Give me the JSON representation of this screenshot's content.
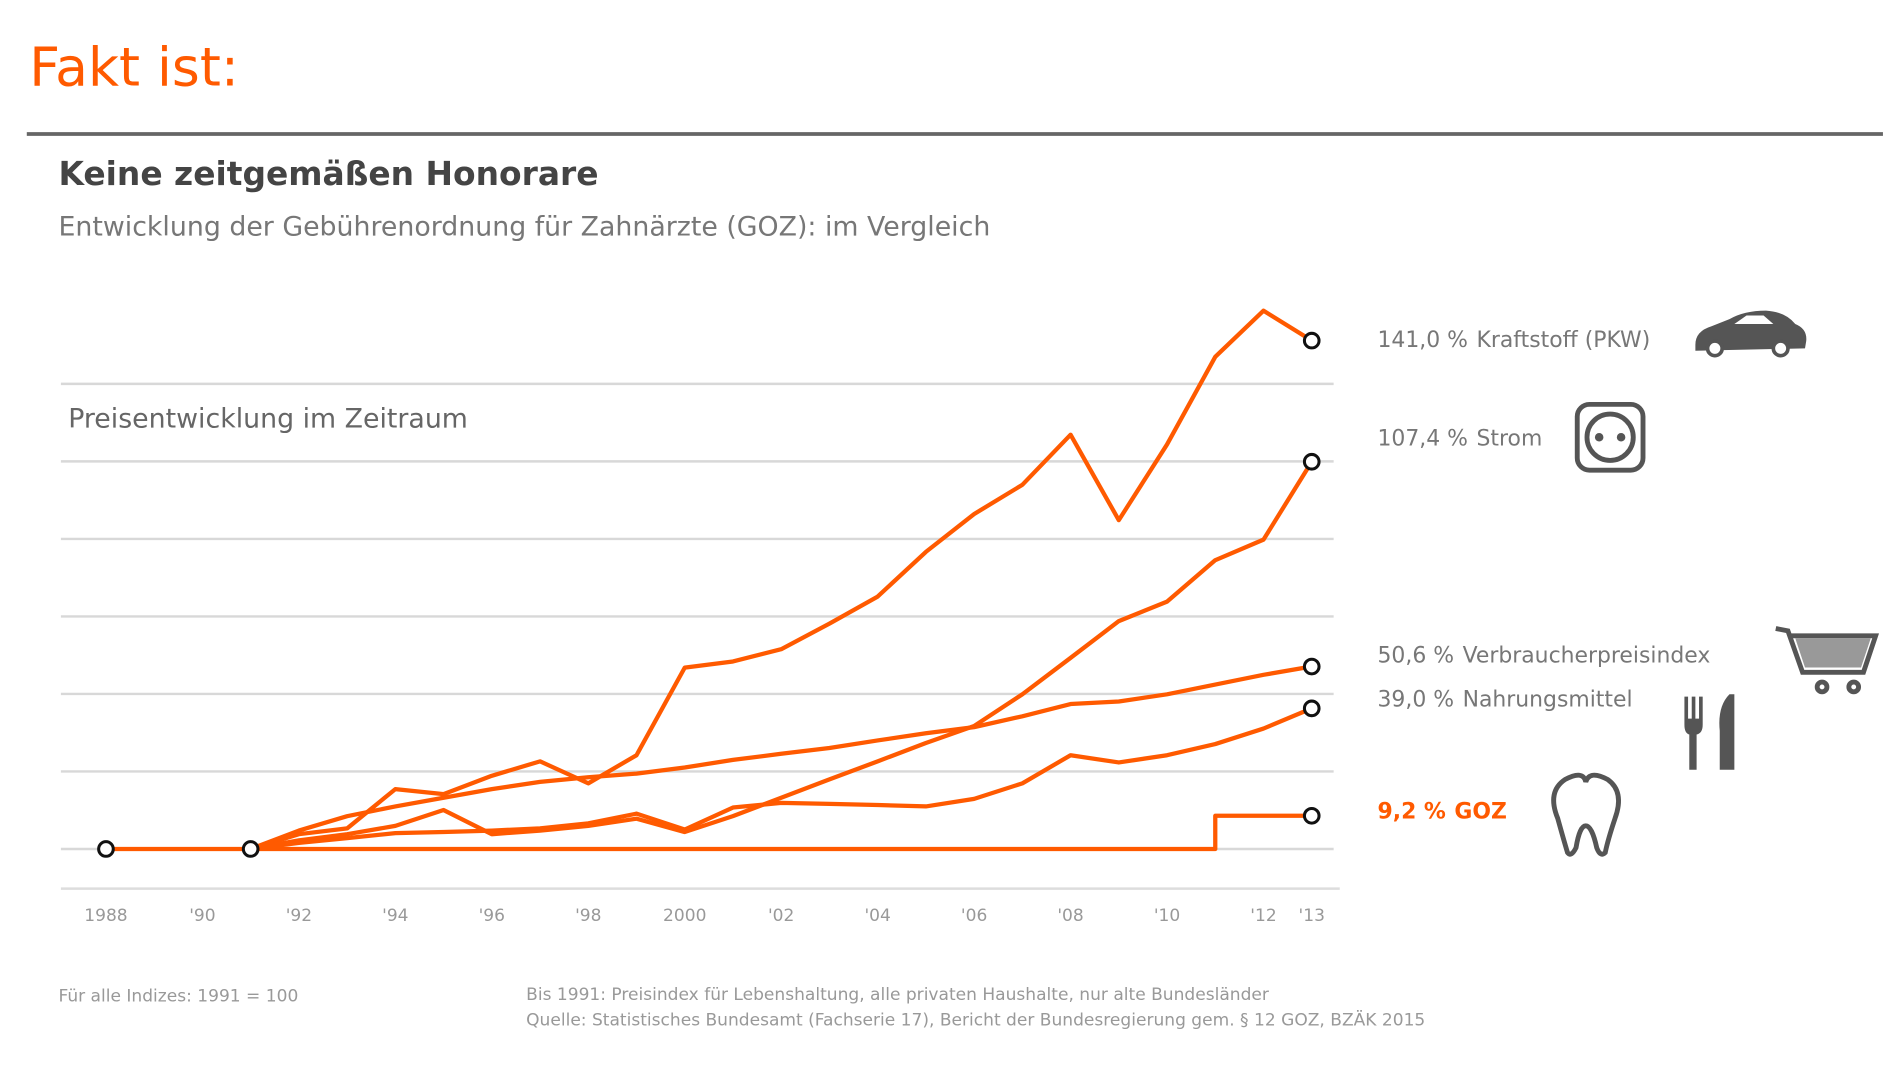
{
  "header": "Fakt ist:",
  "chart_data": {
    "type": "line",
    "title": "Keine zeitgemäßen Honorare",
    "subtitle": "Entwicklung der Gebührenordnung für Zahnärzte (GOZ): im Vergleich",
    "annotation": "Preisentwicklung im Zeitraum",
    "footnote_left": "Für alle Indizes: 1991 = 100",
    "footnote_right": [
      "Bis 1991: Preisindex für Lebenshaltung, alle privaten Haushalte, nur alte Bundesländer",
      "Quelle: Statistisches Bundesamt (Fachserie 17), Bericht der Bundesregierung gem. § 12 GOZ, BZÄK 2015"
    ],
    "xlim": [
      1987,
      2013.5
    ],
    "xticks": [
      1988,
      {
        "value": 1990,
        "label": "'90"
      },
      {
        "value": 1992,
        "label": "'92"
      },
      {
        "value": 1994,
        "label": "'94"
      },
      {
        "value": 1996,
        "label": "'96"
      },
      {
        "value": 1998,
        "label": "'98"
      },
      2000,
      {
        "value": 2002,
        "label": "'02"
      },
      {
        "value": 2004,
        "label": "'04"
      },
      {
        "value": 2006,
        "label": "'06"
      },
      {
        "value": 2008,
        "label": "'08"
      },
      {
        "value": 2010,
        "label": "'10"
      },
      {
        "value": 2012,
        "label": "'12"
      },
      {
        "value": 2013,
        "label": "'13"
      }
    ],
    "ylim": [
      -11,
      155
    ],
    "yticks": [
      0,
      21.5,
      43,
      64.5,
      86,
      107.5,
      129
    ],
    "grid": true,
    "series": [
      {
        "name": "Kraftstoff (PKW)",
        "color": "#ff5a00",
        "label_color": "#777",
        "x": [
          1991,
          1992,
          1993,
          1994,
          1995,
          1996,
          1997,
          1998,
          1999,
          2000,
          2001,
          2002,
          2003,
          2004,
          2005,
          2006,
          2007,
          2008,
          2009,
          2010,
          2011,
          2012,
          2013
        ],
        "values": [
          0,
          4.1,
          5.7,
          16.6,
          15.2,
          20.3,
          24.3,
          18.2,
          26.0,
          50.3,
          52.0,
          55.4,
          62.5,
          70.0,
          82.4,
          92.9,
          101.0,
          114.9,
          91.2,
          112.2,
          136.5,
          149.3,
          141.0
        ],
        "value_labels": [
          null,
          null,
          null,
          null,
          null,
          null,
          null,
          null,
          null,
          null,
          null,
          null,
          null,
          null,
          null,
          null,
          null,
          null,
          null,
          null,
          null,
          null,
          "141,0 %"
        ]
      },
      {
        "name": "Strom",
        "color": "#ff5a00",
        "label_color": "#777",
        "x": [
          1991,
          1992,
          1993,
          1994,
          1995,
          1996,
          1997,
          1998,
          1999,
          2000,
          2001,
          2002,
          2003,
          2004,
          2005,
          2006,
          2007,
          2008,
          2009,
          2010,
          2011,
          2012,
          2013
        ],
        "values": [
          0,
          2.4,
          4.1,
          6.4,
          10.8,
          4.1,
          5.1,
          6.4,
          8.4,
          4.7,
          9.1,
          14.2,
          19.3,
          24.3,
          29.4,
          34.1,
          42.9,
          53.0,
          63.2,
          68.6,
          80.1,
          85.8,
          107.4
        ],
        "value_labels": [
          null,
          null,
          null,
          null,
          null,
          null,
          null,
          null,
          null,
          null,
          null,
          null,
          null,
          null,
          null,
          null,
          null,
          null,
          null,
          null,
          null,
          null,
          "107,4 %"
        ]
      },
      {
        "name": "Verbraucherpreisindex",
        "color": "#ff5a00",
        "label_color": "#777",
        "x": [
          1991,
          1992,
          1993,
          1994,
          1995,
          1996,
          1997,
          1998,
          1999,
          2000,
          2001,
          2002,
          2003,
          2004,
          2005,
          2006,
          2007,
          2008,
          2009,
          2010,
          2011,
          2012,
          2013
        ],
        "values": [
          0,
          5.1,
          9.1,
          11.8,
          14.2,
          16.6,
          18.6,
          19.9,
          20.9,
          22.6,
          24.7,
          26.4,
          28.0,
          30.1,
          32.1,
          33.8,
          36.8,
          40.2,
          40.9,
          42.9,
          45.6,
          48.3,
          50.6
        ],
        "value_labels": [
          null,
          null,
          null,
          null,
          null,
          null,
          null,
          null,
          null,
          null,
          null,
          null,
          null,
          null,
          null,
          null,
          null,
          null,
          null,
          null,
          null,
          null,
          "50,6 %"
        ]
      },
      {
        "name": "Nahrungsmittel",
        "color": "#ff5a00",
        "label_color": "#777",
        "x": [
          1991,
          1992,
          1993,
          1994,
          1995,
          1996,
          1997,
          1998,
          1999,
          2000,
          2001,
          2002,
          2003,
          2004,
          2005,
          2006,
          2007,
          2008,
          2009,
          2010,
          2011,
          2012,
          2013
        ],
        "values": [
          0,
          1.7,
          3.0,
          4.4,
          4.7,
          5.1,
          5.7,
          7.1,
          9.8,
          5.4,
          11.5,
          12.8,
          12.5,
          12.2,
          11.8,
          13.9,
          18.2,
          26.0,
          24.0,
          26.0,
          29.1,
          33.4,
          39.0
        ],
        "value_labels": [
          null,
          null,
          null,
          null,
          null,
          null,
          null,
          null,
          null,
          null,
          null,
          null,
          null,
          null,
          null,
          null,
          null,
          null,
          null,
          null,
          null,
          null,
          "39,0 %"
        ]
      },
      {
        "name": "GOZ",
        "color": "#ff5a00",
        "label_color": "#ff5a00",
        "x": [
          1988,
          1991,
          2011,
          2011,
          2013
        ],
        "values": [
          0,
          0,
          0,
          9.2,
          9.2
        ],
        "value_labels": [
          null,
          null,
          null,
          null,
          "9,2 %"
        ]
      }
    ]
  }
}
